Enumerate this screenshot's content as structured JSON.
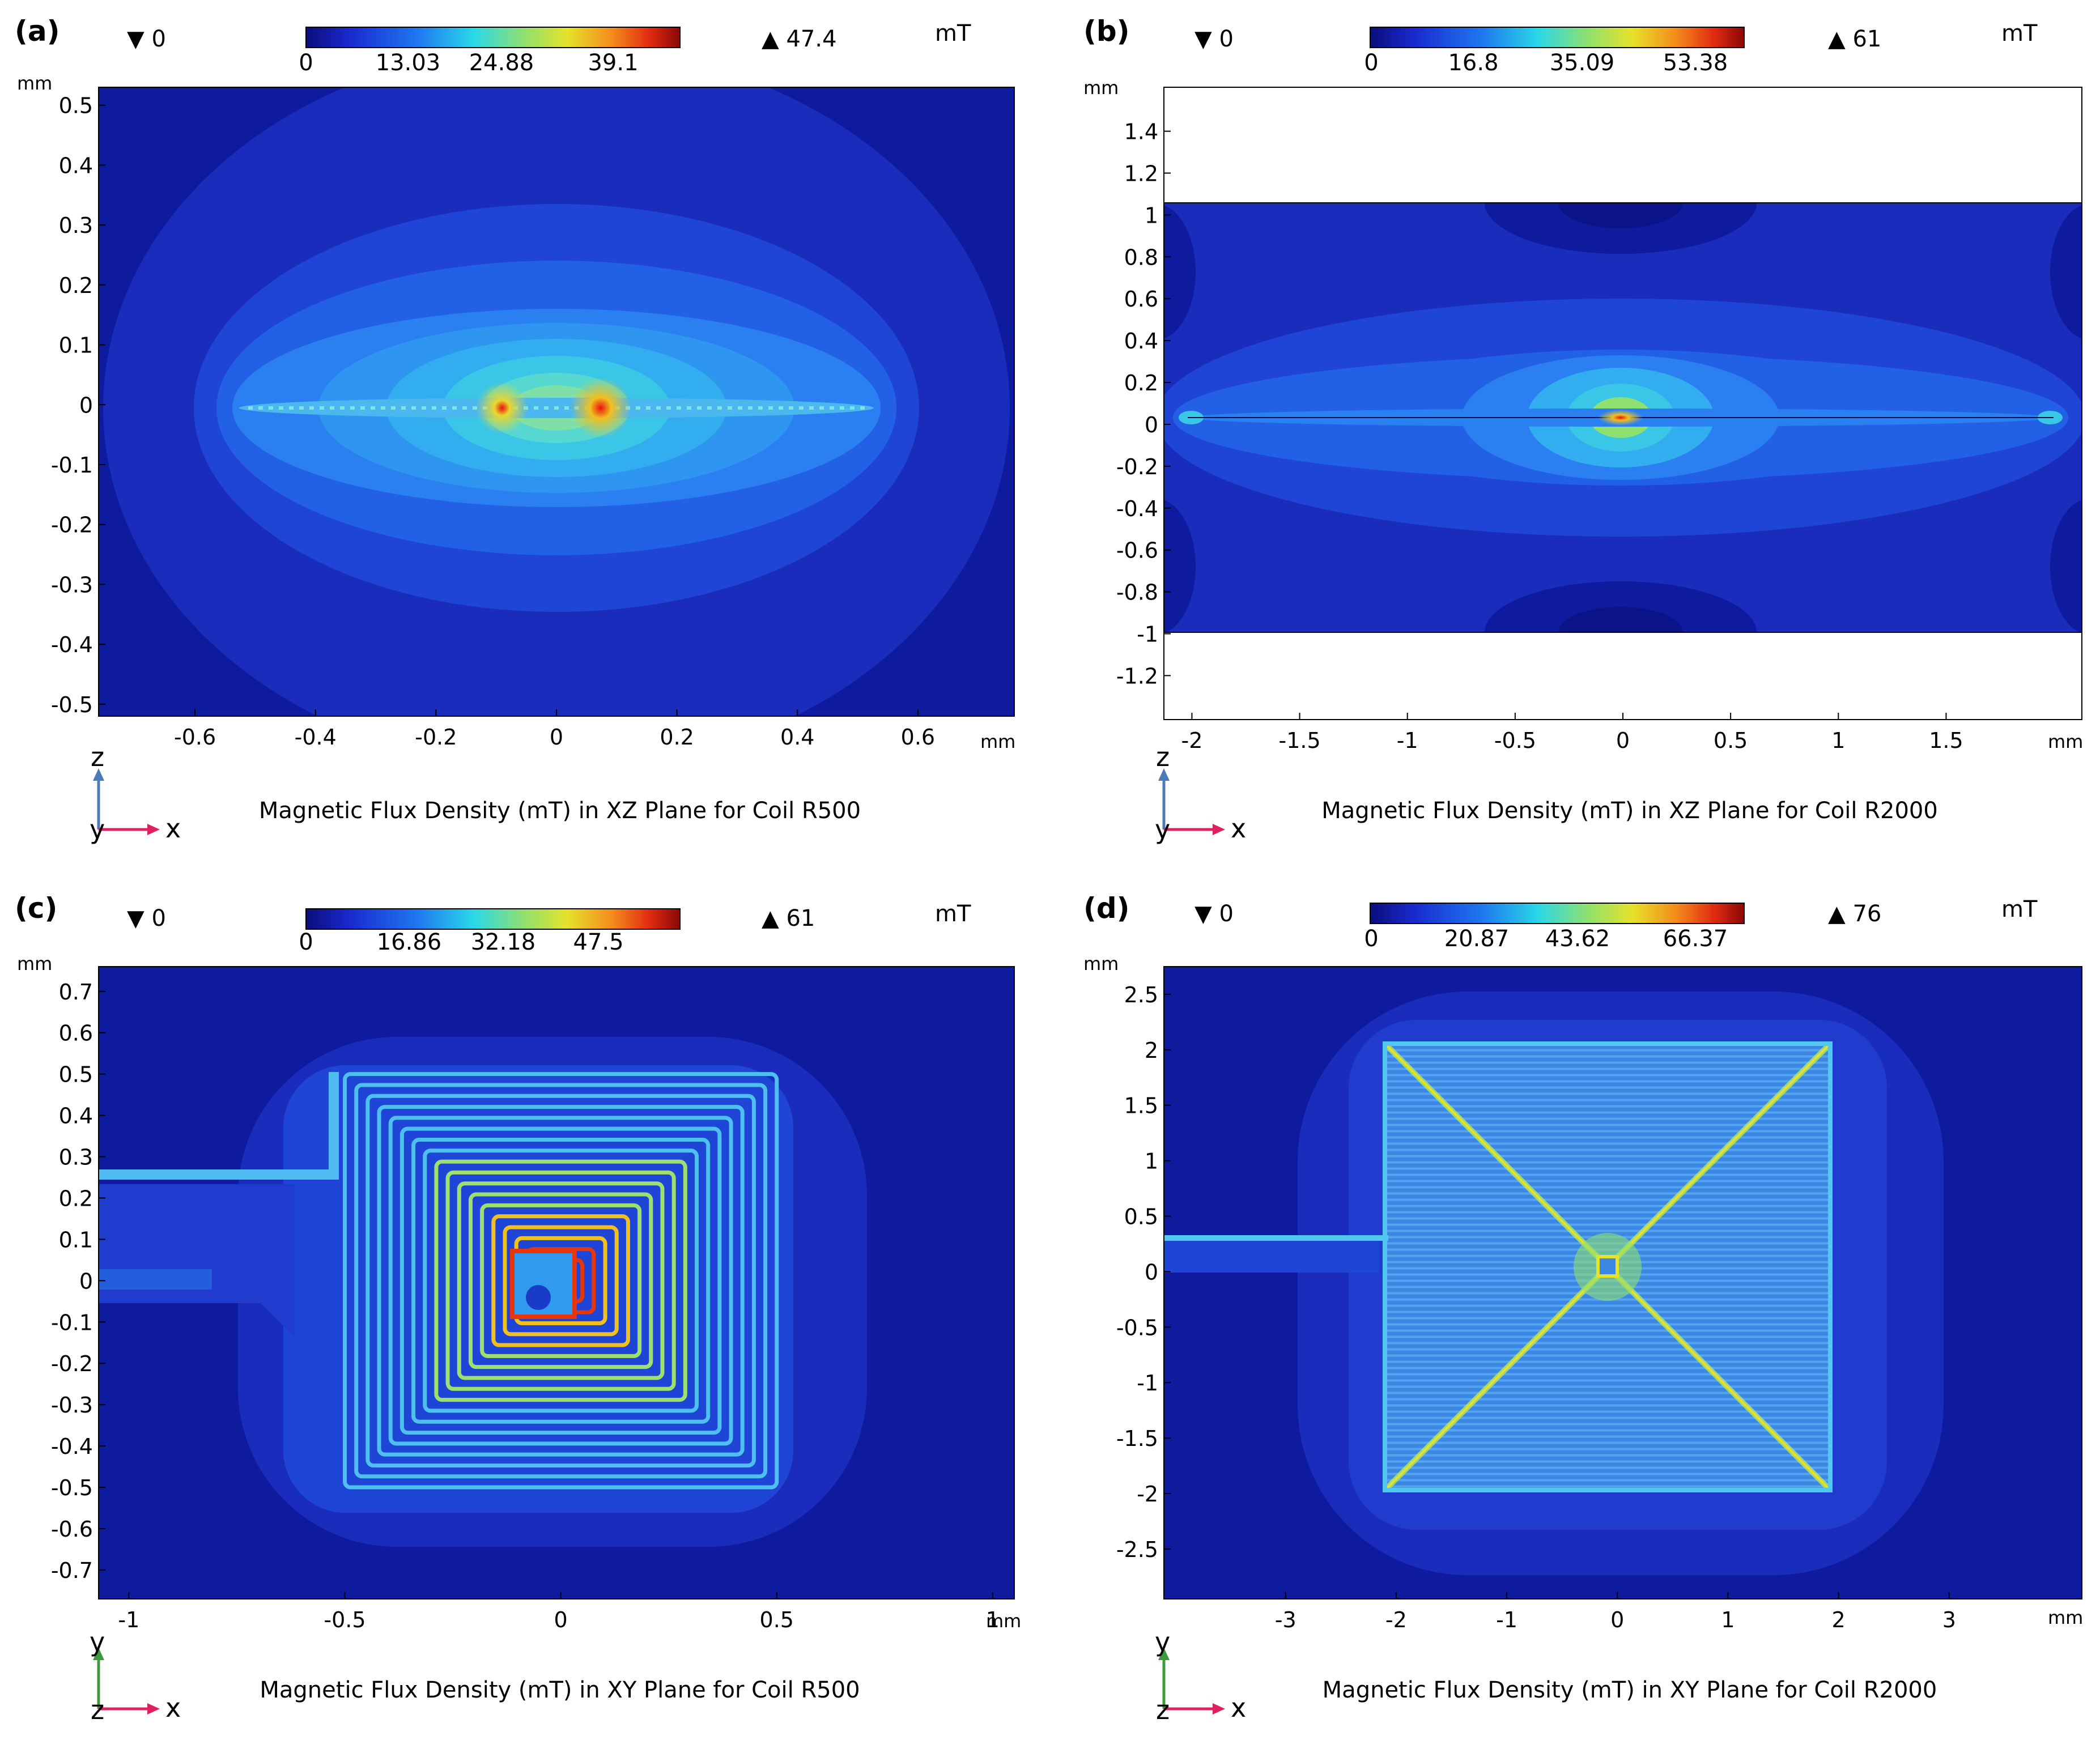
{
  "figure": {
    "panels": [
      {
        "label": "(a)",
        "caption": "Magnetic Flux Density (mT) in XZ Plane for Coil R500",
        "colorbar": {
          "min_marker": "▼ 0",
          "max_marker": "▲ 47.4",
          "unit": "mT",
          "ticks": [
            "0",
            "13.03",
            "24.88",
            "39.1"
          ],
          "tick_values": [
            0,
            13.03,
            24.88,
            39.1
          ],
          "min": 0,
          "max": 47.4
        },
        "axes": {
          "x_unit": "mm",
          "y_unit": "mm",
          "plane": "XZ",
          "x_axis": "x",
          "y_axis": "z",
          "normal_axis": "y",
          "vertical_color": "#4a7ab8"
        }
      },
      {
        "label": "(b)",
        "caption": "Magnetic Flux Density (mT) in XZ Plane for Coil R2000",
        "colorbar": {
          "min_marker": "▼ 0",
          "max_marker": "▲ 61",
          "unit": "mT",
          "ticks": [
            "0",
            "16.8",
            "35.09",
            "53.38"
          ],
          "tick_values": [
            0,
            16.8,
            35.09,
            53.38
          ],
          "min": 0,
          "max": 61
        },
        "axes": {
          "x_unit": "mm",
          "y_unit": "mm",
          "plane": "XZ",
          "x_axis": "x",
          "y_axis": "z",
          "normal_axis": "y",
          "vertical_color": "#4a7ab8"
        }
      },
      {
        "label": "(c)",
        "caption": "Magnetic Flux Density (mT) in XY Plane for Coil R500",
        "colorbar": {
          "min_marker": "▼ 0",
          "max_marker": "▲ 61",
          "unit": "mT",
          "ticks": [
            "0",
            "16.86",
            "32.18",
            "47.5"
          ],
          "tick_values": [
            0,
            16.86,
            32.18,
            47.5
          ],
          "min": 0,
          "max": 61
        },
        "axes": {
          "x_unit": "mm",
          "y_unit": "mm",
          "plane": "XY",
          "x_axis": "x",
          "y_axis": "y",
          "normal_axis": "z",
          "vertical_color": "#3c9a3c"
        }
      },
      {
        "label": "(d)",
        "caption": "Magnetic Flux Density (mT) in XY Plane for Coil R2000",
        "colorbar": {
          "min_marker": "▼ 0",
          "max_marker": "▲ 76",
          "unit": "mT",
          "ticks": [
            "0",
            "20.87",
            "43.62",
            "66.37"
          ],
          "tick_values": [
            0,
            20.87,
            43.62,
            66.37
          ],
          "min": 0,
          "max": 76
        },
        "axes": {
          "x_unit": "mm",
          "y_unit": "mm",
          "plane": "XY",
          "x_axis": "x",
          "y_axis": "y",
          "normal_axis": "z",
          "vertical_color": "#3c9a3c"
        }
      }
    ]
  },
  "chart_data": [
    {
      "type": "heatmap",
      "title": "Magnetic Flux Density (mT) in XZ Plane for Coil R500",
      "xlabel": "mm",
      "ylabel": "mm",
      "xlim": [
        -0.76,
        0.76
      ],
      "ylim": [
        -0.52,
        0.53
      ],
      "x_ticks": [
        -0.6,
        -0.4,
        -0.2,
        0,
        0.2,
        0.4,
        0.6
      ],
      "x_tick_labels": [
        "-0.6",
        "-0.4",
        "-0.2",
        "0",
        "0.2",
        "0.4",
        "0.6"
      ],
      "y_ticks": [
        0.5,
        0.4,
        0.3,
        0.2,
        0.1,
        0,
        -0.1,
        -0.2,
        -0.3,
        -0.4,
        -0.5
      ],
      "y_tick_labels": [
        "0.5",
        "0.4",
        "0.3",
        "0.2",
        "0.1",
        "0",
        "-0.1",
        "-0.2",
        "-0.3",
        "-0.4",
        "-0.5"
      ],
      "colorbar_range": [
        0,
        47.4
      ],
      "unit": "mT",
      "coil_half_width_mm": 0.5,
      "peak_locations_mm": [
        -0.09,
        0.07
      ]
    },
    {
      "type": "heatmap",
      "title": "Magnetic Flux Density (mT) in XZ Plane for Coil R2000",
      "xlabel": "mm",
      "ylabel": "mm",
      "xlim": [
        -2.13,
        2.13
      ],
      "ylim": [
        -1.41,
        1.61
      ],
      "data_y_extent": [
        -1,
        1
      ],
      "x_ticks": [
        -2,
        -1.5,
        -1,
        -0.5,
        0,
        0.5,
        1,
        1.5
      ],
      "x_tick_labels": [
        "-2",
        "-1.5",
        "-1",
        "-0.5",
        "0",
        "0.5",
        "1",
        "1.5"
      ],
      "y_ticks": [
        1.4,
        1.2,
        1,
        0.8,
        0.6,
        0.4,
        0.2,
        0,
        -0.2,
        -0.4,
        -0.6,
        -0.8,
        -1,
        -1.2
      ],
      "y_tick_labels": [
        "1.4",
        "1.2",
        "1",
        "0.8",
        "0.6",
        "0.4",
        "0.2",
        "0",
        "-0.2",
        "-0.4",
        "-0.6",
        "-0.8",
        "-1",
        "-1.2"
      ],
      "colorbar_range": [
        0,
        61
      ],
      "unit": "mT",
      "coil_half_width_mm": 2
    },
    {
      "type": "heatmap",
      "title": "Magnetic Flux Density (mT) in XY Plane for Coil R500",
      "xlabel": "mm",
      "ylabel": "mm",
      "xlim": [
        -1.07,
        1.05
      ],
      "ylim": [
        -0.77,
        0.76
      ],
      "x_ticks": [
        -1,
        -0.5,
        0,
        0.5,
        1
      ],
      "x_tick_labels": [
        "-1",
        "-0.5",
        "0",
        "0.5",
        "1"
      ],
      "y_ticks": [
        0.7,
        0.6,
        0.5,
        0.4,
        0.3,
        0.2,
        0.1,
        0,
        -0.1,
        -0.2,
        -0.3,
        -0.4,
        -0.5,
        -0.6,
        -0.7
      ],
      "y_tick_labels": [
        "0.7",
        "0.6",
        "0.5",
        "0.4",
        "0.3",
        "0.2",
        "0.1",
        "0",
        "-0.1",
        "-0.2",
        "-0.3",
        "-0.4",
        "-0.5",
        "-0.6",
        "-0.7"
      ],
      "colorbar_range": [
        0,
        61
      ],
      "unit": "mT",
      "coil_half_width_mm": 0.5,
      "turns_drawn": 18,
      "lead_y_mm": 0.26
    },
    {
      "type": "heatmap",
      "title": "Magnetic Flux Density (mT) in XY Plane for Coil R2000",
      "xlabel": "mm",
      "ylabel": "mm",
      "xlim": [
        -4.1,
        4.2
      ],
      "ylim": [
        -2.95,
        2.75
      ],
      "x_ticks": [
        -3,
        -2,
        -1,
        0,
        1,
        2,
        3
      ],
      "x_tick_labels": [
        "-3",
        "-2",
        "-1",
        "0",
        "1",
        "2",
        "3"
      ],
      "y_ticks": [
        2.5,
        2,
        1.5,
        1,
        0.5,
        0,
        -0.5,
        -1,
        -1.5,
        -2,
        -2.5
      ],
      "y_tick_labels": [
        "2.5",
        "2",
        "1.5",
        "1",
        "0.5",
        "0",
        "-0.5",
        "-1",
        "-1.5",
        "-2",
        "-2.5"
      ],
      "colorbar_range": [
        0,
        76
      ],
      "unit": "mT",
      "coil_half_width_mm": 2,
      "lead_y_mm": 0.26
    }
  ]
}
